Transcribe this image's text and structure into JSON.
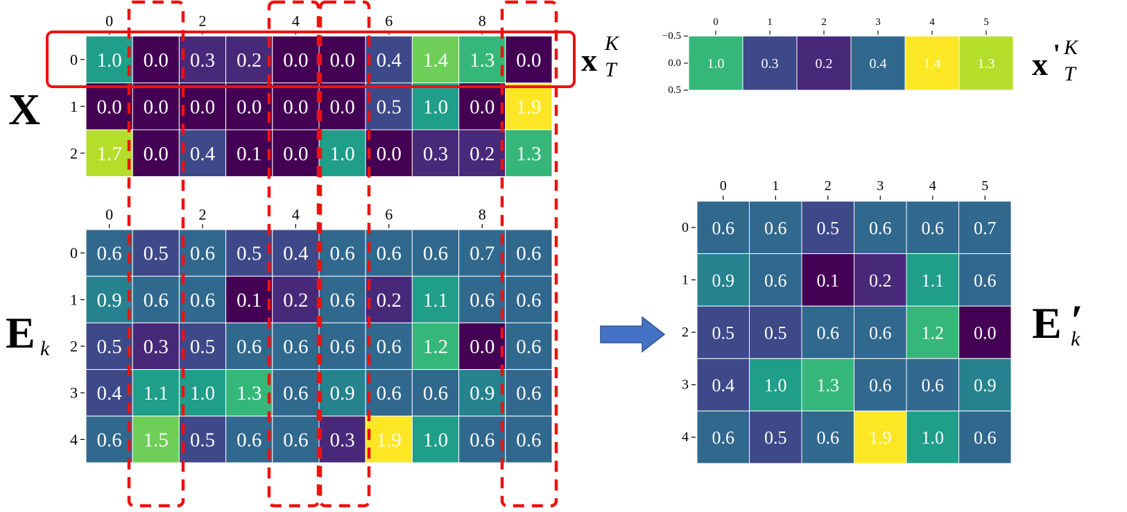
{
  "colormap": [
    "#440154",
    "#482878",
    "#3e4989",
    "#31688e",
    "#26828e",
    "#1f9e89",
    "#35b779",
    "#6ece58",
    "#b5de2b",
    "#fde725"
  ],
  "x_matrix": {
    "label": "X",
    "col_ticks": [
      "0",
      "2",
      "4",
      "6",
      "8"
    ],
    "row_ticks": [
      "0",
      "1",
      "2"
    ],
    "values": [
      [
        "1.0",
        "0.0",
        "0.3",
        "0.2",
        "0.0",
        "0.0",
        "0.4",
        "1.4",
        "1.3",
        "0.0"
      ],
      [
        "0.0",
        "0.0",
        "0.0",
        "0.0",
        "0.0",
        "0.0",
        "0.5",
        "1.0",
        "0.0",
        "1.9"
      ],
      [
        "1.7",
        "0.0",
        "0.4",
        "0.1",
        "0.0",
        "1.0",
        "0.0",
        "0.3",
        "0.2",
        "1.3"
      ]
    ],
    "row_label_main": "x",
    "row_label_sup": "K",
    "row_label_sub": "T"
  },
  "e_matrix": {
    "label": "E",
    "label_sub": "k",
    "col_ticks": [
      "0",
      "2",
      "4",
      "6",
      "8"
    ],
    "row_ticks": [
      "0",
      "1",
      "2",
      "3",
      "4"
    ],
    "values": [
      [
        "0.6",
        "0.5",
        "0.6",
        "0.5",
        "0.4",
        "0.6",
        "0.6",
        "0.6",
        "0.7",
        "0.6"
      ],
      [
        "0.9",
        "0.6",
        "0.6",
        "0.1",
        "0.2",
        "0.6",
        "0.2",
        "1.1",
        "0.6",
        "0.6"
      ],
      [
        "0.5",
        "0.3",
        "0.5",
        "0.6",
        "0.6",
        "0.6",
        "0.6",
        "1.2",
        "0.0",
        "0.6"
      ],
      [
        "0.4",
        "1.1",
        "1.0",
        "1.3",
        "0.6",
        "0.9",
        "0.6",
        "0.6",
        "0.9",
        "0.6"
      ],
      [
        "0.6",
        "1.5",
        "0.5",
        "0.6",
        "0.6",
        "0.3",
        "1.9",
        "1.0",
        "0.6",
        "0.6"
      ]
    ],
    "dropped_columns": [
      1,
      4,
      5,
      9
    ]
  },
  "x_prime": {
    "label_main": "x",
    "label_prime": "'",
    "label_sup": "K",
    "label_sub": "T",
    "col_ticks": [
      "0",
      "1",
      "2",
      "3",
      "4",
      "5"
    ],
    "row_ticks": [
      "−0.5",
      "0.0",
      "0.5"
    ],
    "values": [
      "1.0",
      "0.3",
      "0.2",
      "0.4",
      "1.4",
      "1.3"
    ]
  },
  "e_prime": {
    "label": "E",
    "label_sub": "k",
    "label_prime": "′",
    "col_ticks": [
      "0",
      "1",
      "2",
      "3",
      "4",
      "5"
    ],
    "row_ticks": [
      "0",
      "1",
      "2",
      "3",
      "4"
    ],
    "values": [
      [
        "0.6",
        "0.6",
        "0.5",
        "0.6",
        "0.6",
        "0.7"
      ],
      [
        "0.9",
        "0.6",
        "0.1",
        "0.2",
        "1.1",
        "0.6"
      ],
      [
        "0.5",
        "0.5",
        "0.6",
        "0.6",
        "1.2",
        "0.0"
      ],
      [
        "0.4",
        "1.0",
        "1.3",
        "0.6",
        "0.6",
        "0.9"
      ],
      [
        "0.6",
        "0.5",
        "0.6",
        "1.9",
        "1.0",
        "0.6"
      ]
    ]
  },
  "highlight_color": "#ee1111",
  "arrow_color": "#4472c4"
}
